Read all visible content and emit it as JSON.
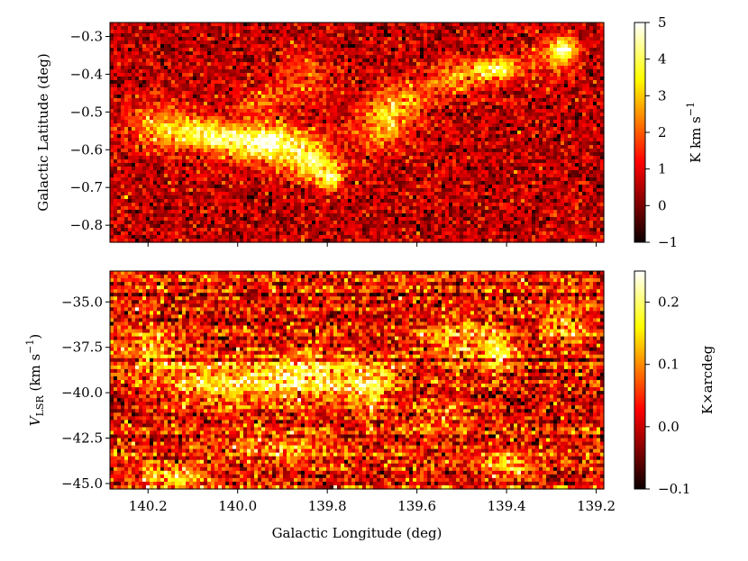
{
  "chart_data": [
    {
      "type": "heatmap",
      "panel": "top",
      "xlabel": "",
      "ylabel": "Galactic Latitude (deg)",
      "xlim": [
        140.285,
        139.183
      ],
      "ylim": [
        -0.845,
        -0.263
      ],
      "x_ticks": [
        140.2,
        140.0,
        139.8,
        139.6,
        139.4,
        139.2
      ],
      "y_ticks": [
        -0.8,
        -0.7,
        -0.6,
        -0.5,
        -0.4,
        -0.3
      ],
      "y_tick_labels": [
        "−0.8",
        "−0.7",
        "−0.6",
        "−0.5",
        "−0.4",
        "−0.3"
      ],
      "colormap": "hot",
      "colorbar": {
        "label": "K km s",
        "label_sup": "−1",
        "range": [
          -1,
          5
        ],
        "ticks": [
          -1,
          0,
          1,
          2,
          3,
          4,
          5
        ],
        "tick_labels": [
          "−1",
          "0",
          "1",
          "2",
          "3",
          "4",
          "5"
        ]
      },
      "emission_features": [
        {
          "l": 139.93,
          "b": -0.585,
          "peak": 4.2,
          "sl": 0.07,
          "sb": 0.035
        },
        {
          "l": 140.08,
          "b": -0.56,
          "peak": 3.0,
          "sl": 0.06,
          "sb": 0.03
        },
        {
          "l": 139.83,
          "b": -0.64,
          "peak": 3.0,
          "sl": 0.04,
          "sb": 0.03
        },
        {
          "l": 139.79,
          "b": -0.68,
          "peak": 2.8,
          "sl": 0.02,
          "sb": 0.02
        },
        {
          "l": 140.18,
          "b": -0.53,
          "peak": 1.8,
          "sl": 0.05,
          "sb": 0.04
        },
        {
          "l": 139.68,
          "b": -0.53,
          "peak": 2.4,
          "sl": 0.04,
          "sb": 0.05
        },
        {
          "l": 139.62,
          "b": -0.47,
          "peak": 1.8,
          "sl": 0.04,
          "sb": 0.04
        },
        {
          "l": 139.51,
          "b": -0.41,
          "peak": 2.0,
          "sl": 0.05,
          "sb": 0.03
        },
        {
          "l": 139.42,
          "b": -0.385,
          "peak": 3.5,
          "sl": 0.035,
          "sb": 0.02
        },
        {
          "l": 139.27,
          "b": -0.33,
          "peak": 3.5,
          "sl": 0.02,
          "sb": 0.02
        },
        {
          "l": 139.3,
          "b": -0.36,
          "peak": 1.8,
          "sl": 0.03,
          "sb": 0.03
        },
        {
          "l": 139.85,
          "b": -0.4,
          "peak": 1.4,
          "sl": 0.04,
          "sb": 0.04
        },
        {
          "l": 139.95,
          "b": -0.47,
          "peak": 1.2,
          "sl": 0.05,
          "sb": 0.03
        }
      ],
      "background_mean": 0.6,
      "noise_sigma": 0.65
    },
    {
      "type": "heatmap",
      "panel": "bottom",
      "xlabel": "Galactic Longitude (deg)",
      "ylabel": "V",
      "ylabel_sub": "LSR",
      "ylabel_unit": " (km s",
      "ylabel_unit_sup": "−1",
      "ylabel_unit_end": ")",
      "xlim": [
        140.285,
        139.183
      ],
      "ylim": [
        -45.3,
        -33.3
      ],
      "x_ticks": [
        140.2,
        140.0,
        139.8,
        139.6,
        139.4,
        139.2
      ],
      "x_tick_labels": [
        "140.2",
        "140.0",
        "139.8",
        "139.6",
        "139.4",
        "139.2"
      ],
      "y_ticks": [
        -45.0,
        -42.5,
        -40.0,
        -37.5,
        -35.0
      ],
      "y_tick_labels": [
        "−45.0",
        "−42.5",
        "−40.0",
        "−37.5",
        "−35.0"
      ],
      "colormap": "hot",
      "colorbar": {
        "label": "K×arcdeg",
        "range": [
          -0.1,
          0.25
        ],
        "ticks": [
          -0.1,
          0.0,
          0.1,
          0.2
        ],
        "tick_labels": [
          "−0.1",
          "0.0",
          "0.1",
          "0.2"
        ]
      },
      "emission_features": [
        {
          "l": 139.85,
          "v": -39.3,
          "peak": 0.17,
          "sl": 0.09,
          "sv": 0.9
        },
        {
          "l": 140.05,
          "v": -39.6,
          "peak": 0.12,
          "sl": 0.08,
          "sv": 0.9
        },
        {
          "l": 140.2,
          "v": -37.8,
          "peak": 0.09,
          "sl": 0.05,
          "sv": 1.2
        },
        {
          "l": 139.7,
          "v": -39.8,
          "peak": 0.13,
          "sl": 0.04,
          "sv": 1.0
        },
        {
          "l": 139.5,
          "v": -37.0,
          "peak": 0.11,
          "sl": 0.06,
          "sv": 0.8
        },
        {
          "l": 139.42,
          "v": -37.8,
          "peak": 0.13,
          "sl": 0.03,
          "sv": 0.6
        },
        {
          "l": 139.27,
          "v": -36.0,
          "peak": 0.12,
          "sl": 0.03,
          "sv": 0.8
        },
        {
          "l": 139.55,
          "v": -41.2,
          "peak": 0.08,
          "sl": 0.05,
          "sv": 0.6
        },
        {
          "l": 139.4,
          "v": -44.0,
          "peak": 0.11,
          "sl": 0.04,
          "sv": 0.5
        },
        {
          "l": 139.9,
          "v": -43.0,
          "peak": 0.09,
          "sl": 0.08,
          "sv": 0.5
        },
        {
          "l": 140.15,
          "v": -44.6,
          "peak": 0.12,
          "sl": 0.06,
          "sv": 0.4
        }
      ],
      "background_mean": 0.02,
      "noise_sigma": 0.055
    }
  ]
}
